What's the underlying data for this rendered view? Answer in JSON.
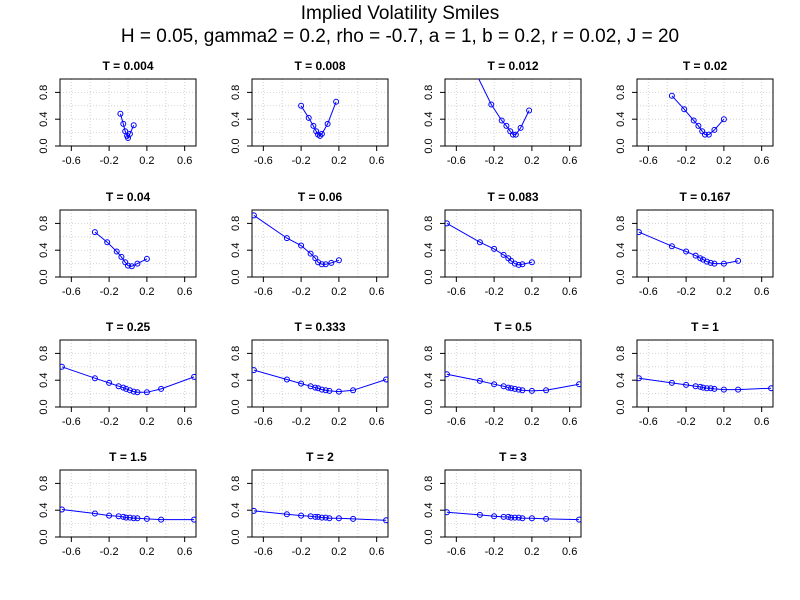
{
  "figure": {
    "title": "Implied Volatility Smiles",
    "subtitle": "H = 0.05, gamma2 = 0.2, rho = -0.7, a = 1, b = 0.2, r = 0.02, J = 20"
  },
  "colors": {
    "series": "#0000ff",
    "grid": "#d3d3d3",
    "axes": "#000000"
  },
  "chart_data": [
    {
      "type": "line",
      "title": "T = 0.004",
      "xlim": [
        -0.72,
        0.72
      ],
      "ylim": [
        0,
        1
      ],
      "grid": true,
      "x_ticks": [
        "-0.6",
        "-0.2",
        "0.2",
        "0.6"
      ],
      "y_ticks": [
        "0.0",
        "0.4",
        "0.8"
      ],
      "x": [
        -0.08,
        -0.05,
        -0.03,
        -0.01,
        0.0,
        0.02,
        0.06
      ],
      "y": [
        0.48,
        0.33,
        0.22,
        0.15,
        0.12,
        0.18,
        0.31
      ]
    },
    {
      "type": "line",
      "title": "T = 0.008",
      "xlim": [
        -0.72,
        0.72
      ],
      "ylim": [
        0,
        1
      ],
      "grid": true,
      "x_ticks": [
        "-0.6",
        "-0.2",
        "0.2",
        "0.6"
      ],
      "y_ticks": [
        "0.0",
        "0.4",
        "0.8"
      ],
      "x": [
        -0.2,
        -0.12,
        -0.07,
        -0.04,
        -0.02,
        0.0,
        0.02,
        0.08,
        0.17
      ],
      "y": [
        0.6,
        0.42,
        0.3,
        0.22,
        0.17,
        0.15,
        0.18,
        0.33,
        0.66
      ]
    },
    {
      "type": "line",
      "title": "T = 0.012",
      "xlim": [
        -0.72,
        0.72
      ],
      "ylim": [
        0,
        1
      ],
      "grid": true,
      "x_ticks": [
        "-0.6",
        "-0.2",
        "0.2",
        "0.6"
      ],
      "y_ticks": [
        "0.0",
        "0.4",
        "0.8"
      ],
      "x": [
        -0.38,
        -0.23,
        -0.12,
        -0.07,
        -0.03,
        0.0,
        0.03,
        0.08,
        0.17
      ],
      "y": [
        1.05,
        0.62,
        0.38,
        0.3,
        0.22,
        0.17,
        0.17,
        0.27,
        0.53
      ]
    },
    {
      "type": "line",
      "title": "T = 0.02",
      "xlim": [
        -0.72,
        0.72
      ],
      "ylim": [
        0,
        1
      ],
      "grid": true,
      "x_ticks": [
        "-0.6",
        "-0.2",
        "0.2",
        "0.6"
      ],
      "y_ticks": [
        "0.0",
        "0.4",
        "0.8"
      ],
      "x": [
        -0.35,
        -0.22,
        -0.12,
        -0.07,
        -0.03,
        0.0,
        0.04,
        0.1,
        0.2
      ],
      "y": [
        0.75,
        0.55,
        0.38,
        0.3,
        0.22,
        0.17,
        0.17,
        0.24,
        0.4
      ]
    },
    {
      "type": "line",
      "title": "T = 0.04",
      "xlim": [
        -0.72,
        0.72
      ],
      "ylim": [
        0,
        1
      ],
      "grid": true,
      "x_ticks": [
        "-0.6",
        "-0.2",
        "0.2",
        "0.6"
      ],
      "y_ticks": [
        "0.0",
        "0.4",
        "0.8"
      ],
      "x": [
        -0.35,
        -0.22,
        -0.12,
        -0.07,
        -0.03,
        0.0,
        0.04,
        0.1,
        0.2
      ],
      "y": [
        0.67,
        0.52,
        0.38,
        0.3,
        0.22,
        0.17,
        0.16,
        0.2,
        0.27
      ]
    },
    {
      "type": "line",
      "title": "T = 0.06",
      "xlim": [
        -0.72,
        0.72
      ],
      "ylim": [
        0,
        1
      ],
      "grid": true,
      "x_ticks": [
        "-0.6",
        "-0.2",
        "0.2",
        "0.6"
      ],
      "y_ticks": [
        "0.0",
        "0.4",
        "0.8"
      ],
      "x": [
        -0.7,
        -0.35,
        -0.2,
        -0.1,
        -0.05,
        -0.02,
        0.02,
        0.06,
        0.12,
        0.2
      ],
      "y": [
        0.92,
        0.58,
        0.47,
        0.35,
        0.28,
        0.22,
        0.19,
        0.19,
        0.21,
        0.25
      ]
    },
    {
      "type": "line",
      "title": "T = 0.083",
      "xlim": [
        -0.72,
        0.72
      ],
      "ylim": [
        0,
        1
      ],
      "grid": true,
      "x_ticks": [
        "-0.6",
        "-0.2",
        "0.2",
        "0.6"
      ],
      "y_ticks": [
        "0.0",
        "0.4",
        "0.8"
      ],
      "x": [
        -0.7,
        -0.35,
        -0.2,
        -0.1,
        -0.05,
        -0.02,
        0.02,
        0.06,
        0.1,
        0.2
      ],
      "y": [
        0.8,
        0.52,
        0.42,
        0.33,
        0.28,
        0.24,
        0.2,
        0.18,
        0.19,
        0.22
      ]
    },
    {
      "type": "line",
      "title": "T = 0.167",
      "xlim": [
        -0.72,
        0.72
      ],
      "ylim": [
        0,
        1
      ],
      "grid": true,
      "x_ticks": [
        "-0.6",
        "-0.2",
        "0.2",
        "0.6"
      ],
      "y_ticks": [
        "0.0",
        "0.4",
        "0.8"
      ],
      "x": [
        -0.7,
        -0.35,
        -0.2,
        -0.1,
        -0.05,
        -0.02,
        0.02,
        0.06,
        0.1,
        0.2,
        0.35
      ],
      "y": [
        0.67,
        0.46,
        0.38,
        0.32,
        0.28,
        0.26,
        0.23,
        0.21,
        0.2,
        0.2,
        0.24
      ]
    },
    {
      "type": "line",
      "title": "T = 0.25",
      "xlim": [
        -0.72,
        0.72
      ],
      "ylim": [
        0,
        1
      ],
      "grid": true,
      "x_ticks": [
        "-0.6",
        "-0.2",
        "0.2",
        "0.6"
      ],
      "y_ticks": [
        "0.0",
        "0.4",
        "0.8"
      ],
      "x": [
        -0.7,
        -0.35,
        -0.2,
        -0.1,
        -0.05,
        -0.02,
        0.02,
        0.06,
        0.1,
        0.2,
        0.35,
        0.7
      ],
      "y": [
        0.6,
        0.43,
        0.36,
        0.31,
        0.29,
        0.27,
        0.25,
        0.23,
        0.22,
        0.22,
        0.27,
        0.45
      ]
    },
    {
      "type": "line",
      "title": "T = 0.333",
      "xlim": [
        -0.72,
        0.72
      ],
      "ylim": [
        0,
        1
      ],
      "grid": true,
      "x_ticks": [
        "-0.6",
        "-0.2",
        "0.2",
        "0.6"
      ],
      "y_ticks": [
        "0.0",
        "0.4",
        "0.8"
      ],
      "x": [
        -0.7,
        -0.35,
        -0.2,
        -0.1,
        -0.05,
        -0.02,
        0.02,
        0.06,
        0.1,
        0.2,
        0.35,
        0.7
      ],
      "y": [
        0.55,
        0.41,
        0.35,
        0.31,
        0.29,
        0.28,
        0.26,
        0.25,
        0.24,
        0.23,
        0.25,
        0.41
      ]
    },
    {
      "type": "line",
      "title": "T = 0.5",
      "xlim": [
        -0.72,
        0.72
      ],
      "ylim": [
        0,
        1
      ],
      "grid": true,
      "x_ticks": [
        "-0.6",
        "-0.2",
        "0.2",
        "0.6"
      ],
      "y_ticks": [
        "0.0",
        "0.4",
        "0.8"
      ],
      "x": [
        -0.7,
        -0.35,
        -0.2,
        -0.1,
        -0.05,
        -0.02,
        0.02,
        0.06,
        0.1,
        0.2,
        0.35,
        0.7
      ],
      "y": [
        0.49,
        0.39,
        0.34,
        0.31,
        0.29,
        0.28,
        0.27,
        0.26,
        0.25,
        0.24,
        0.25,
        0.34
      ]
    },
    {
      "type": "line",
      "title": "T = 1",
      "xlim": [
        -0.72,
        0.72
      ],
      "ylim": [
        0,
        1
      ],
      "grid": true,
      "x_ticks": [
        "-0.6",
        "-0.2",
        "0.2",
        "0.6"
      ],
      "y_ticks": [
        "0.0",
        "0.4",
        "0.8"
      ],
      "x": [
        -0.7,
        -0.35,
        -0.2,
        -0.1,
        -0.05,
        -0.02,
        0.02,
        0.06,
        0.1,
        0.2,
        0.35,
        0.7
      ],
      "y": [
        0.43,
        0.36,
        0.33,
        0.31,
        0.3,
        0.29,
        0.28,
        0.28,
        0.27,
        0.26,
        0.26,
        0.28
      ]
    },
    {
      "type": "line",
      "title": "T = 1.5",
      "xlim": [
        -0.72,
        0.72
      ],
      "ylim": [
        0,
        1
      ],
      "grid": true,
      "x_ticks": [
        "-0.6",
        "-0.2",
        "0.2",
        "0.6"
      ],
      "y_ticks": [
        "0.0",
        "0.4",
        "0.8"
      ],
      "x": [
        -0.7,
        -0.35,
        -0.2,
        -0.1,
        -0.05,
        -0.02,
        0.02,
        0.06,
        0.1,
        0.2,
        0.35,
        0.7
      ],
      "y": [
        0.41,
        0.35,
        0.32,
        0.31,
        0.3,
        0.29,
        0.29,
        0.28,
        0.28,
        0.27,
        0.26,
        0.26
      ]
    },
    {
      "type": "line",
      "title": "T = 2",
      "xlim": [
        -0.72,
        0.72
      ],
      "ylim": [
        0,
        1
      ],
      "grid": true,
      "x_ticks": [
        "-0.6",
        "-0.2",
        "0.2",
        "0.6"
      ],
      "y_ticks": [
        "0.0",
        "0.4",
        "0.8"
      ],
      "x": [
        -0.7,
        -0.35,
        -0.2,
        -0.1,
        -0.05,
        -0.02,
        0.02,
        0.06,
        0.1,
        0.2,
        0.35,
        0.7
      ],
      "y": [
        0.39,
        0.34,
        0.32,
        0.31,
        0.3,
        0.3,
        0.29,
        0.29,
        0.28,
        0.28,
        0.27,
        0.25
      ]
    },
    {
      "type": "line",
      "title": "T = 3",
      "xlim": [
        -0.72,
        0.72
      ],
      "ylim": [
        0,
        1
      ],
      "grid": true,
      "x_ticks": [
        "-0.6",
        "-0.2",
        "0.2",
        "0.6"
      ],
      "y_ticks": [
        "0.0",
        "0.4",
        "0.8"
      ],
      "x": [
        -0.7,
        -0.35,
        -0.2,
        -0.1,
        -0.05,
        -0.02,
        0.02,
        0.06,
        0.1,
        0.2,
        0.35,
        0.7
      ],
      "y": [
        0.37,
        0.33,
        0.31,
        0.3,
        0.3,
        0.29,
        0.29,
        0.29,
        0.28,
        0.28,
        0.27,
        0.26
      ]
    }
  ]
}
